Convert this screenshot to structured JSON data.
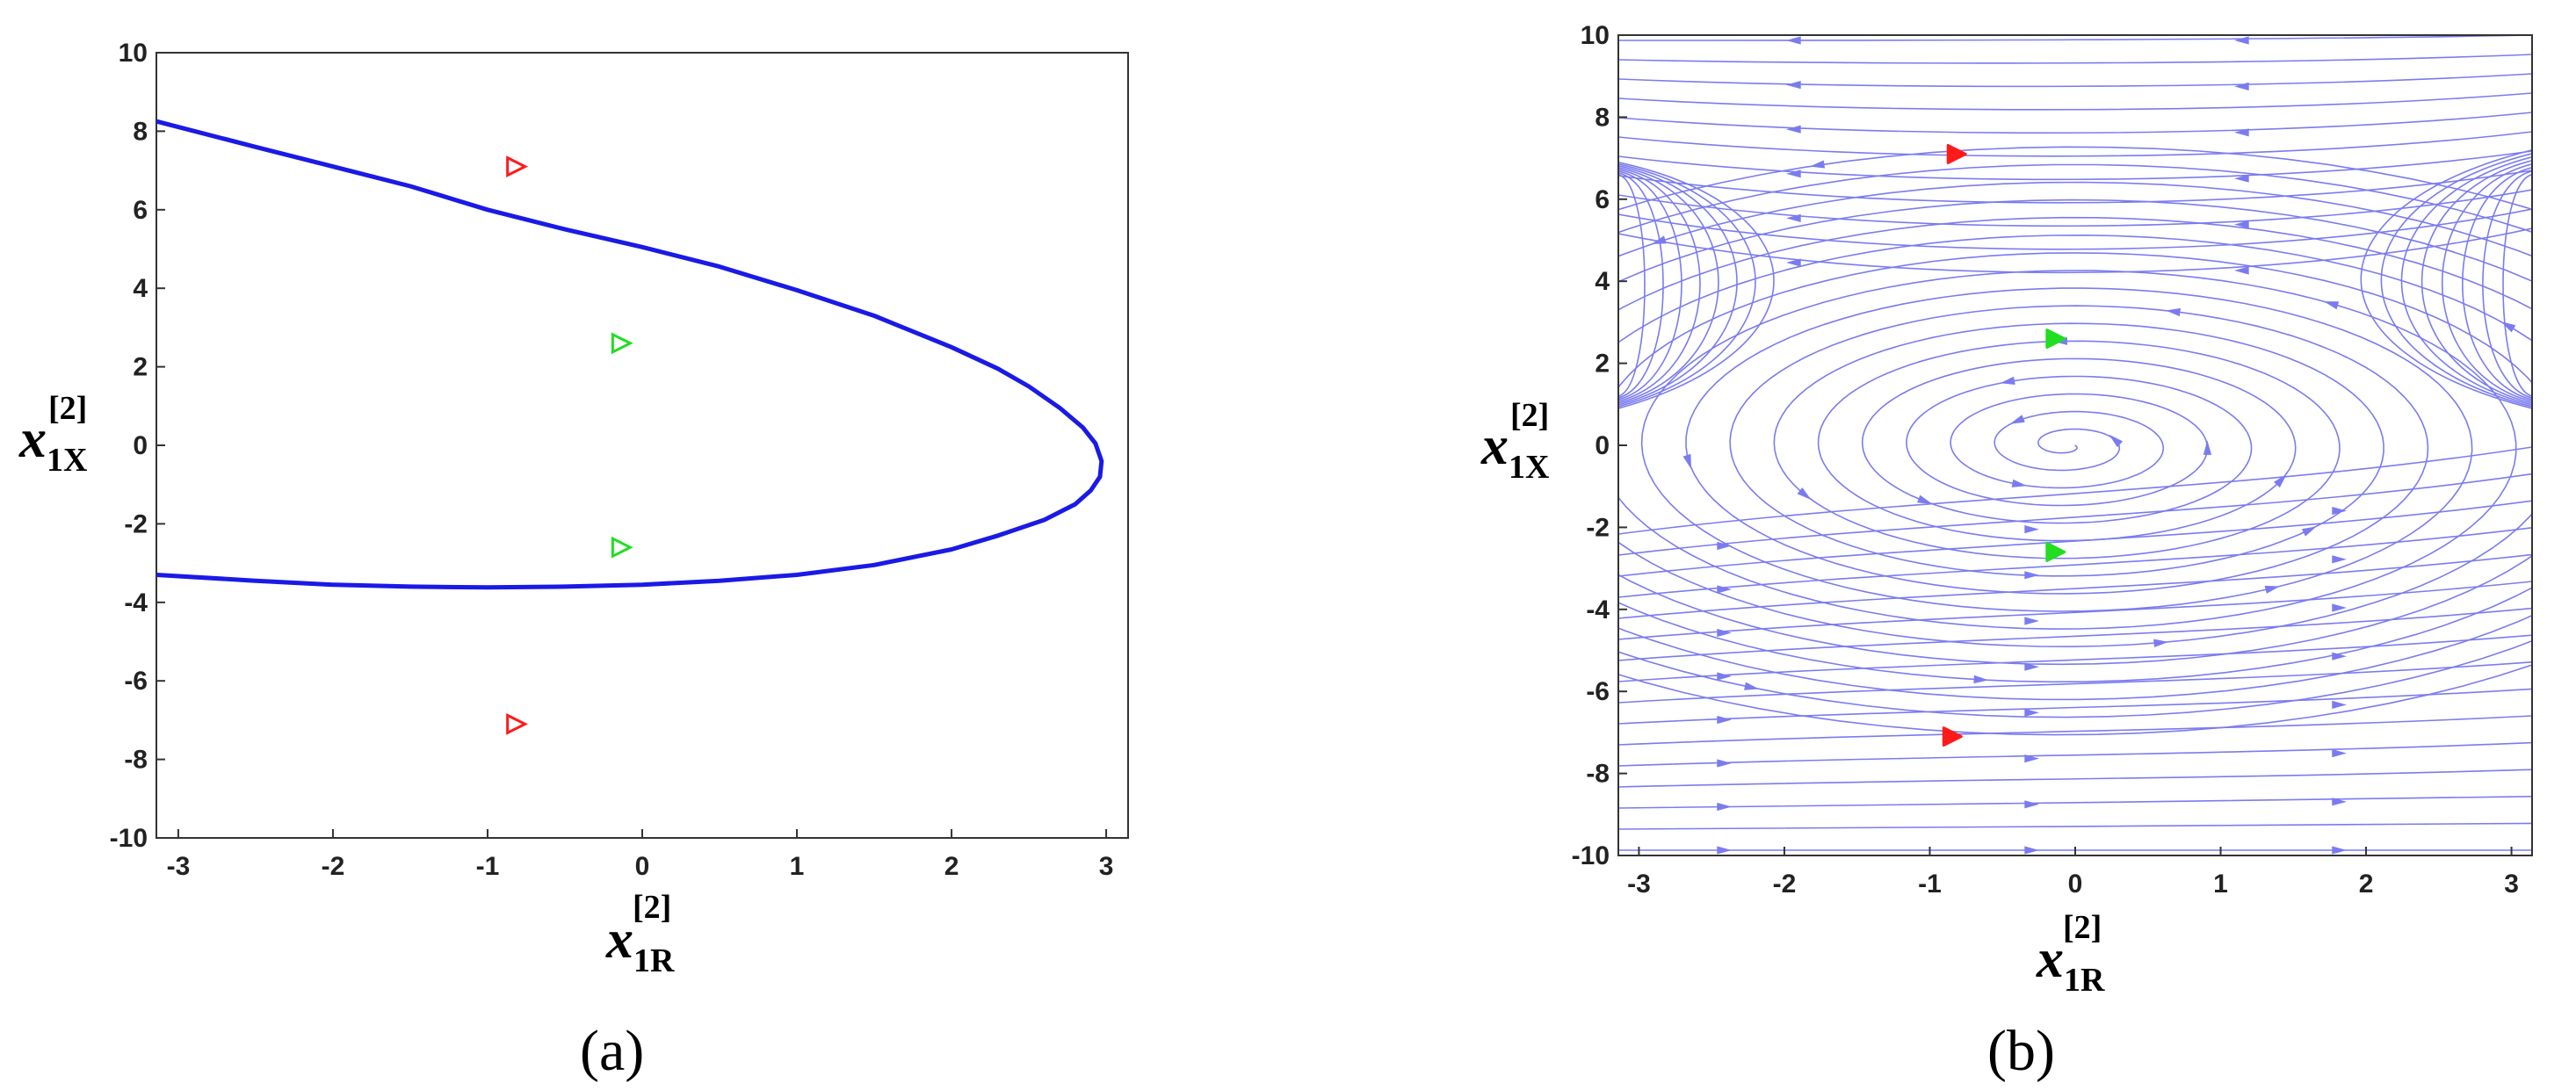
{
  "colors": {
    "curve": "#1a1ae6",
    "stream": "#7b7bf0",
    "saddle_marker": "#ff1a1a",
    "center_marker": "#22dd22",
    "axis": "#333333"
  },
  "chart_data": [
    {
      "panel_label": "(a)",
      "type": "line",
      "xlabel": {
        "symbol": "x",
        "sub": "1R",
        "sup": "[2]"
      },
      "ylabel": {
        "symbol": "x",
        "sub": "1X",
        "sup": "[2]"
      },
      "xlim": [
        -3.14159,
        3.14159
      ],
      "ylim": [
        -10,
        10
      ],
      "xticks": [
        "-3",
        "-2",
        "-1",
        "0",
        "1",
        "2",
        "3"
      ],
      "yticks": [
        "-10",
        "-8",
        "-6",
        "-4",
        "-2",
        "0",
        "2",
        "4",
        "6",
        "8",
        "10"
      ],
      "grid": false,
      "series": [
        {
          "style": "curve",
          "x": [
            -3.14,
            -2.5,
            -2.0,
            -1.5,
            -1.0,
            -0.5,
            0.0,
            0.5,
            1.0,
            1.5,
            2.0,
            2.3,
            2.5,
            2.7,
            2.85,
            2.93,
            2.97,
            2.96,
            2.9,
            2.8,
            2.6,
            2.3,
            2.0,
            1.5,
            1.0,
            0.5,
            0.0,
            -0.5,
            -1.0,
            -1.5,
            -2.0,
            -2.5,
            -3.14
          ],
          "y": [
            8.25,
            7.6,
            7.1,
            6.6,
            6.0,
            5.5,
            5.05,
            4.55,
            3.95,
            3.3,
            2.5,
            1.95,
            1.5,
            0.95,
            0.45,
            0.05,
            -0.4,
            -0.8,
            -1.15,
            -1.5,
            -1.9,
            -2.3,
            -2.65,
            -3.05,
            -3.3,
            -3.45,
            -3.55,
            -3.6,
            -3.62,
            -3.6,
            -3.55,
            -3.45,
            -3.3
          ]
        }
      ],
      "markers": [
        {
          "type": "saddle",
          "x": -0.82,
          "y": 7.1
        },
        {
          "type": "saddle",
          "x": -0.82,
          "y": -7.1
        },
        {
          "type": "center",
          "x": -0.14,
          "y": 2.6
        },
        {
          "type": "center",
          "x": -0.14,
          "y": -2.6
        }
      ]
    },
    {
      "panel_label": "(b)",
      "type": "streamplot",
      "xlabel": {
        "symbol": "x",
        "sub": "1R",
        "sup": "[2]"
      },
      "ylabel": {
        "symbol": "x",
        "sub": "1X",
        "sup": "[2]"
      },
      "xlim": [
        -3.14159,
        3.14159
      ],
      "ylim": [
        -10,
        10
      ],
      "xticks": [
        "-3",
        "-2",
        "-1",
        "0",
        "1",
        "2",
        "3"
      ],
      "yticks": [
        "-10",
        "-8",
        "-6",
        "-4",
        "-2",
        "0",
        "2",
        "4",
        "6",
        "8",
        "10"
      ],
      "grid": false,
      "center": {
        "x": -0.05,
        "y": 0.0
      },
      "markers": [
        {
          "type": "saddle",
          "x": -0.82,
          "y": 7.1
        },
        {
          "type": "saddle",
          "x": -0.85,
          "y": -7.1
        },
        {
          "type": "center",
          "x": -0.14,
          "y": 2.6
        },
        {
          "type": "center",
          "x": -0.14,
          "y": -2.6
        }
      ]
    }
  ]
}
